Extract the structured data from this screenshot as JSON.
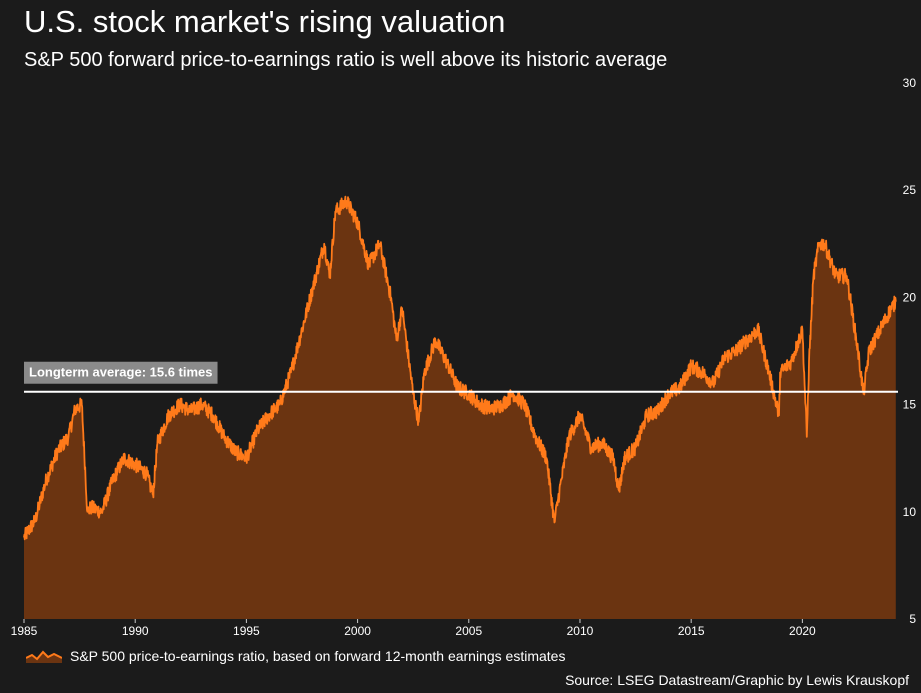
{
  "header": {
    "title": "U.S. stock market's rising valuation",
    "subtitle": "S&P 500 forward price-to-earnings ratio is well above its historic average"
  },
  "legend": {
    "label": "S&P 500 price-to-earnings ratio, based on forward 12-month earnings estimates"
  },
  "footer": {
    "source": "Source: LSEG Datastream/Graphic by Lewis Krauskopf"
  },
  "colors": {
    "background": "#1b1b1b",
    "line": "#ff7a1a",
    "fill": "#6b3411",
    "average_line": "#ffffff",
    "annotation_box": "#8a8a8a"
  },
  "chart_data": {
    "type": "area",
    "x_range": [
      1985,
      2024.3
    ],
    "ylim": [
      5,
      30
    ],
    "y_axis_side": "right",
    "y_ticks": [
      5,
      10,
      15,
      20,
      25,
      30
    ],
    "x_ticks": [
      1985,
      1990,
      1995,
      2000,
      2005,
      2010,
      2015,
      2020
    ],
    "grid": false,
    "legend_position": "bottom-left",
    "series": [
      {
        "name": "S&P 500 price-to-earnings ratio, based on forward 12-month earnings estimates",
        "x": [
          1985.0,
          1985.5,
          1986.0,
          1986.5,
          1987.0,
          1987.3,
          1987.6,
          1987.85,
          1988.0,
          1988.5,
          1989.0,
          1989.5,
          1990.0,
          1990.5,
          1990.8,
          1991.0,
          1991.5,
          1992.0,
          1992.5,
          1993.0,
          1993.5,
          1994.0,
          1994.5,
          1995.0,
          1995.5,
          1996.0,
          1996.5,
          1997.0,
          1997.5,
          1998.0,
          1998.5,
          1998.75,
          1999.0,
          1999.5,
          2000.0,
          2000.5,
          2001.0,
          2001.5,
          2001.75,
          2002.0,
          2002.5,
          2002.75,
          2003.0,
          2003.5,
          2004.0,
          2004.5,
          2005.0,
          2005.5,
          2006.0,
          2006.5,
          2007.0,
          2007.5,
          2008.0,
          2008.5,
          2008.85,
          2009.0,
          2009.5,
          2010.0,
          2010.5,
          2011.0,
          2011.5,
          2011.75,
          2012.0,
          2012.5,
          2013.0,
          2013.5,
          2014.0,
          2014.5,
          2015.0,
          2015.5,
          2016.0,
          2016.5,
          2017.0,
          2017.5,
          2018.0,
          2018.5,
          2018.95,
          2019.0,
          2019.5,
          2020.0,
          2020.2,
          2020.3,
          2020.5,
          2020.75,
          2021.0,
          2021.5,
          2022.0,
          2022.5,
          2022.75,
          2023.0,
          2023.5,
          2024.0,
          2024.2
        ],
        "values": [
          8.8,
          9.6,
          11.5,
          12.8,
          13.5,
          14.8,
          15.0,
          10.0,
          10.2,
          10.0,
          11.5,
          12.5,
          12.2,
          11.8,
          10.8,
          13.2,
          14.5,
          15.0,
          14.7,
          15.0,
          14.5,
          13.5,
          12.8,
          12.5,
          13.8,
          14.5,
          15.0,
          16.5,
          18.5,
          20.5,
          22.5,
          21.0,
          24.0,
          24.5,
          23.5,
          21.5,
          22.5,
          20.0,
          18.0,
          19.5,
          15.5,
          14.2,
          16.5,
          18.0,
          17.0,
          15.8,
          15.5,
          15.0,
          14.8,
          15.0,
          15.5,
          15.0,
          13.5,
          12.5,
          9.5,
          10.5,
          13.5,
          14.5,
          13.0,
          13.2,
          12.5,
          11.0,
          12.5,
          13.0,
          14.5,
          14.7,
          15.5,
          15.8,
          16.8,
          16.5,
          16.0,
          17.2,
          17.5,
          18.0,
          18.5,
          16.5,
          14.5,
          16.5,
          17.0,
          18.5,
          13.5,
          17.0,
          21.0,
          22.5,
          22.5,
          21.0,
          21.0,
          17.5,
          15.5,
          17.5,
          18.5,
          19.5,
          19.8
        ]
      }
    ],
    "reference_line": {
      "label": "Longterm average: 15.6 times",
      "value": 15.6
    }
  }
}
